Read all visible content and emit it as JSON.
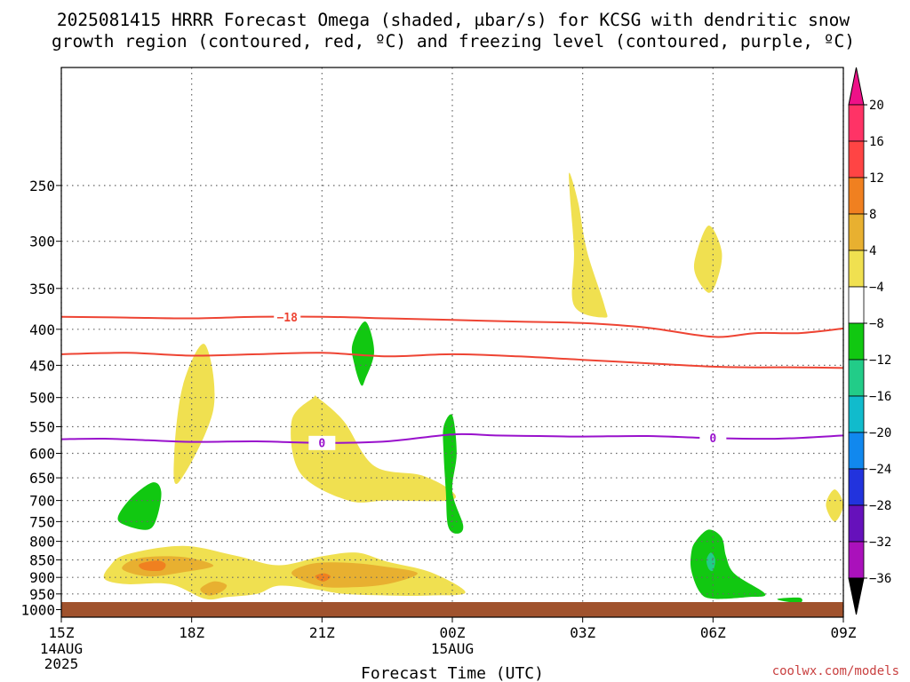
{
  "chart_data": {
    "type": "heatmap",
    "title_lines": [
      "2025081415 HRRR Forecast Omega (shaded, μbar/s) for KCSG with dendritic snow",
      "growth region (contoured, red, ºC) and freezing level (contoured, purple, ºC)"
    ],
    "xlabel": "Forecast Time (UTC)",
    "credit": "coolwx.com/models",
    "x_range_hours": [
      0,
      18
    ],
    "y_range_hpa": [
      1025,
      170
    ],
    "y_ticks": [
      250,
      300,
      350,
      400,
      450,
      500,
      550,
      600,
      650,
      700,
      750,
      800,
      850,
      900,
      950,
      1000
    ],
    "x_ticks": [
      {
        "hour": 0,
        "label": "15Z",
        "sub": [
          "14AUG",
          "2025"
        ]
      },
      {
        "hour": 3,
        "label": "18Z",
        "sub": []
      },
      {
        "hour": 6,
        "label": "21Z",
        "sub": []
      },
      {
        "hour": 9,
        "label": "00Z",
        "sub": [
          "15AUG"
        ]
      },
      {
        "hour": 12,
        "label": "03Z",
        "sub": []
      },
      {
        "hour": 15,
        "label": "06Z",
        "sub": []
      },
      {
        "hour": 18,
        "label": "09Z",
        "sub": []
      }
    ],
    "grid": true,
    "colorbar": {
      "labels": [
        "20",
        "16",
        "12",
        "8",
        "4",
        "−4",
        "−8",
        "−12",
        "−16",
        "−20",
        "−24",
        "−28",
        "−32",
        "−36"
      ],
      "colors": [
        "#ff3366",
        "#ff4444",
        "#f08020",
        "#e8b030",
        "#f0e050",
        "#ffffff",
        "#11c811",
        "#22cc88",
        "#11bbcc",
        "#1188ee",
        "#2233dd",
        "#6611bb",
        "#aa11bb",
        "#aaaaaa"
      ],
      "top_arrow_color": "#ee1188",
      "bottom_arrow_color": "#000000"
    },
    "ground_color": "#a0522d",
    "shaded_regions": [
      {
        "color": "#f0e050",
        "points": [
          [
            2.7,
            660
          ],
          [
            3.5,
            520
          ],
          [
            3.3,
            420
          ],
          [
            2.8,
            480
          ],
          [
            2.6,
            600
          ]
        ]
      },
      {
        "color": "#f0e050",
        "points": [
          [
            5.3,
            540
          ],
          [
            5.5,
            640
          ],
          [
            6.6,
            700
          ],
          [
            7.5,
            700
          ],
          [
            8.9,
            700
          ],
          [
            9.0,
            680
          ],
          [
            8.3,
            645
          ],
          [
            7.2,
            625
          ],
          [
            6.5,
            540
          ],
          [
            5.9,
            500
          ],
          [
            5.8,
            500
          ]
        ]
      },
      {
        "color": "#f0e050",
        "points": [
          [
            1.1,
            870
          ],
          [
            1.5,
            835
          ],
          [
            2.8,
            812
          ],
          [
            4.0,
            838
          ],
          [
            5.0,
            865
          ],
          [
            6.0,
            840
          ],
          [
            6.8,
            830
          ],
          [
            7.5,
            855
          ],
          [
            8.5,
            885
          ],
          [
            9.3,
            945
          ],
          [
            8.5,
            955
          ],
          [
            7.5,
            955
          ],
          [
            6.5,
            950
          ],
          [
            5.8,
            935
          ],
          [
            5.0,
            925
          ],
          [
            4.5,
            950
          ],
          [
            3.8,
            960
          ],
          [
            3.3,
            965
          ],
          [
            2.5,
            920
          ],
          [
            1.5,
            920
          ],
          [
            1.0,
            905
          ]
        ]
      },
      {
        "color": "#e8b030",
        "points": [
          [
            1.4,
            875
          ],
          [
            1.8,
            845
          ],
          [
            2.8,
            842
          ],
          [
            3.5,
            866
          ],
          [
            2.8,
            885
          ],
          [
            2.0,
            897
          ]
        ]
      },
      {
        "color": "#e8b030",
        "points": [
          [
            3.2,
            935
          ],
          [
            3.5,
            912
          ],
          [
            3.8,
            922
          ],
          [
            3.7,
            942
          ],
          [
            3.4,
            955
          ]
        ]
      },
      {
        "color": "#e8b030",
        "points": [
          [
            5.3,
            888
          ],
          [
            5.8,
            860
          ],
          [
            6.6,
            858
          ],
          [
            7.4,
            868
          ],
          [
            8.2,
            888
          ],
          [
            7.5,
            920
          ],
          [
            6.6,
            930
          ],
          [
            5.9,
            925
          ]
        ]
      },
      {
        "color": "#f08020",
        "points": [
          [
            1.8,
            862
          ],
          [
            2.2,
            852
          ],
          [
            2.4,
            862
          ],
          [
            2.3,
            880
          ],
          [
            1.9,
            878
          ]
        ]
      },
      {
        "color": "#f08020",
        "points": [
          [
            5.85,
            895
          ],
          [
            6.05,
            888
          ],
          [
            6.2,
            898
          ],
          [
            6.05,
            912
          ],
          [
            5.9,
            906
          ]
        ]
      },
      {
        "color": "#f0e050",
        "points": [
          [
            11.7,
            240
          ],
          [
            11.9,
            265
          ],
          [
            12.1,
            310
          ],
          [
            12.5,
            370
          ],
          [
            12.5,
            385
          ],
          [
            11.8,
            370
          ],
          [
            11.8,
            310
          ],
          [
            11.7,
            255
          ]
        ]
      },
      {
        "color": "#f0e050",
        "points": [
          [
            14.6,
            315
          ],
          [
            14.9,
            285
          ],
          [
            15.2,
            310
          ],
          [
            15.1,
            340
          ],
          [
            14.9,
            355
          ],
          [
            14.6,
            335
          ]
        ]
      },
      {
        "color": "#f0e050",
        "points": [
          [
            17.6,
            710
          ],
          [
            17.8,
            675
          ],
          [
            18.0,
            710
          ],
          [
            17.8,
            750
          ]
        ]
      },
      {
        "color": "#11c811",
        "points": [
          [
            1.3,
            740
          ],
          [
            1.6,
            695
          ],
          [
            2.1,
            660
          ],
          [
            2.3,
            680
          ],
          [
            2.2,
            740
          ],
          [
            2.0,
            770
          ],
          [
            1.5,
            760
          ]
        ]
      },
      {
        "color": "#11c811",
        "points": [
          [
            6.7,
            420
          ],
          [
            7.0,
            390
          ],
          [
            7.2,
            430
          ],
          [
            7.0,
            470
          ],
          [
            6.9,
            480
          ],
          [
            6.75,
            450
          ]
        ]
      },
      {
        "color": "#11c811",
        "points": [
          [
            8.8,
            550
          ],
          [
            9.0,
            530
          ],
          [
            9.1,
            600
          ],
          [
            9.0,
            680
          ],
          [
            9.25,
            760
          ],
          [
            9.1,
            780
          ],
          [
            8.9,
            760
          ],
          [
            8.85,
            680
          ],
          [
            8.8,
            600
          ]
        ]
      },
      {
        "color": "#11c811",
        "points": [
          [
            14.6,
            800
          ],
          [
            14.9,
            770
          ],
          [
            15.2,
            790
          ],
          [
            15.3,
            840
          ],
          [
            15.5,
            890
          ],
          [
            16.2,
            950
          ],
          [
            15.8,
            960
          ],
          [
            15.0,
            965
          ],
          [
            14.7,
            945
          ],
          [
            14.5,
            880
          ],
          [
            14.5,
            830
          ]
        ]
      },
      {
        "color": "#11c811",
        "points": [
          [
            16.5,
            965
          ],
          [
            17.0,
            962
          ],
          [
            17.0,
            978
          ],
          [
            16.6,
            972
          ]
        ]
      },
      {
        "color": "#22cc88",
        "points": [
          [
            14.85,
            850
          ],
          [
            14.95,
            830
          ],
          [
            15.05,
            850
          ],
          [
            15.0,
            880
          ],
          [
            14.9,
            875
          ]
        ]
      }
    ],
    "dgz_contours": [
      {
        "label": "−18",
        "label_at": [
          5.2,
          385
        ],
        "points": [
          [
            0,
            384
          ],
          [
            1.5,
            385
          ],
          [
            3.0,
            386
          ],
          [
            4.5,
            384
          ],
          [
            6.0,
            384
          ],
          [
            7.5,
            386
          ],
          [
            9.0,
            388
          ],
          [
            10.5,
            390
          ],
          [
            12.0,
            392
          ],
          [
            13.5,
            398
          ],
          [
            15.0,
            410
          ],
          [
            16.0,
            405
          ],
          [
            17.0,
            405
          ],
          [
            18.0,
            399
          ]
        ]
      },
      {
        "label": "",
        "label_at": null,
        "points": [
          [
            0,
            434
          ],
          [
            1.5,
            432
          ],
          [
            3.0,
            436
          ],
          [
            4.5,
            434
          ],
          [
            6.0,
            432
          ],
          [
            7.5,
            437
          ],
          [
            9.0,
            434
          ],
          [
            10.5,
            437
          ],
          [
            12.0,
            442
          ],
          [
            13.5,
            447
          ],
          [
            15.0,
            452
          ],
          [
            16.0,
            453
          ],
          [
            17.0,
            453
          ],
          [
            18.0,
            454
          ]
        ]
      }
    ],
    "freezing_contour": {
      "label": "0",
      "label_at": [
        6.0,
        580
      ],
      "points": [
        [
          0,
          573
        ],
        [
          1.0,
          572
        ],
        [
          2.0,
          575
        ],
        [
          3.0,
          578
        ],
        [
          4.5,
          577
        ],
        [
          6.0,
          580
        ],
        [
          7.5,
          577
        ],
        [
          9.0,
          564
        ],
        [
          10.0,
          566
        ],
        [
          11.0,
          567
        ],
        [
          12.0,
          568
        ],
        [
          13.5,
          567
        ],
        [
          15.0,
          571
        ],
        [
          16.5,
          572
        ],
        [
          18.0,
          566
        ]
      ]
    }
  }
}
